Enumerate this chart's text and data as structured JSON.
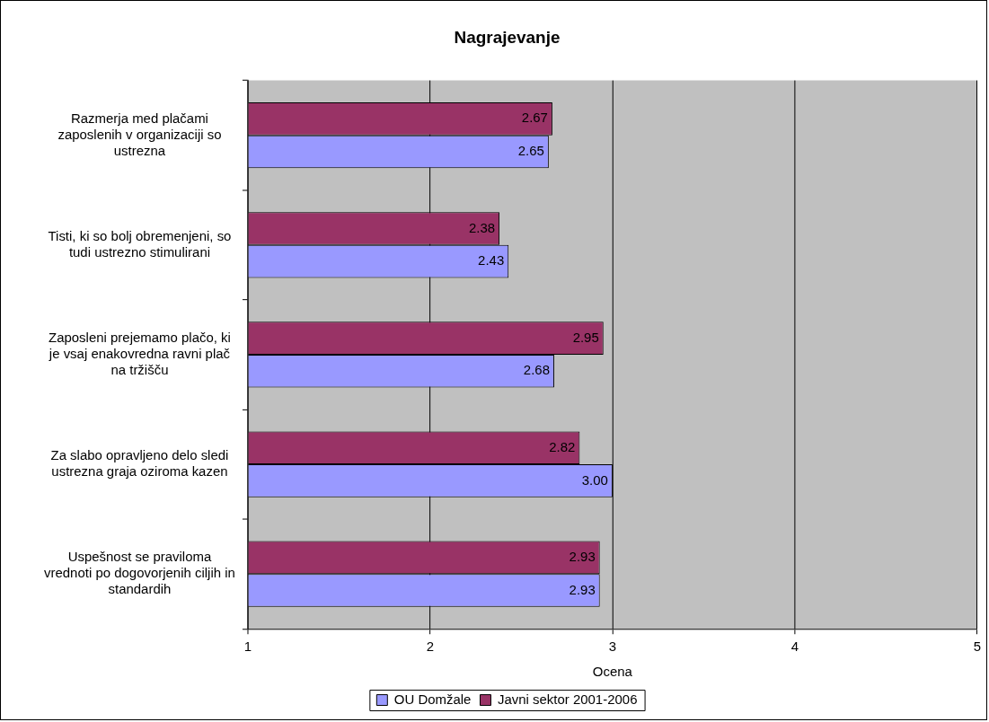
{
  "chart_data": {
    "type": "bar",
    "orientation": "horizontal",
    "title": "Nagrajevanje",
    "xlabel": "Ocena",
    "categories": [
      "Razmerja med plačami zaposlenih v organizaciji so ustrezna",
      "Tisti, ki so bolj obremenjeni, so tudi ustrezno stimulirani",
      "Zaposleni prejemamo plačo, ki je vsaj enakovredna ravni plač na tržišču",
      "Za slabo opravljeno delo sledi ustrezna graja oziroma kazen",
      "Uspešnost se praviloma vrednoti po dogovorjenih ciljih in standardih"
    ],
    "series": [
      {
        "name": "OU Domžale",
        "color": "#9999ff",
        "values": [
          2.65,
          2.43,
          2.68,
          3.0,
          2.93
        ],
        "value_labels": [
          "2.65",
          "2.43",
          "2.68",
          "3.00",
          "2.93"
        ]
      },
      {
        "name": "Javni sektor 2001-2006",
        "color": "#993366",
        "values": [
          2.67,
          2.38,
          2.95,
          2.82,
          2.93
        ],
        "value_labels": [
          "2.67",
          "2.38",
          "2.95",
          "2.82",
          "2.93"
        ]
      }
    ],
    "xlim": [
      1,
      5
    ],
    "xticks": [
      1,
      2,
      3,
      4,
      5
    ],
    "grid": "x",
    "legend": "bottom"
  }
}
